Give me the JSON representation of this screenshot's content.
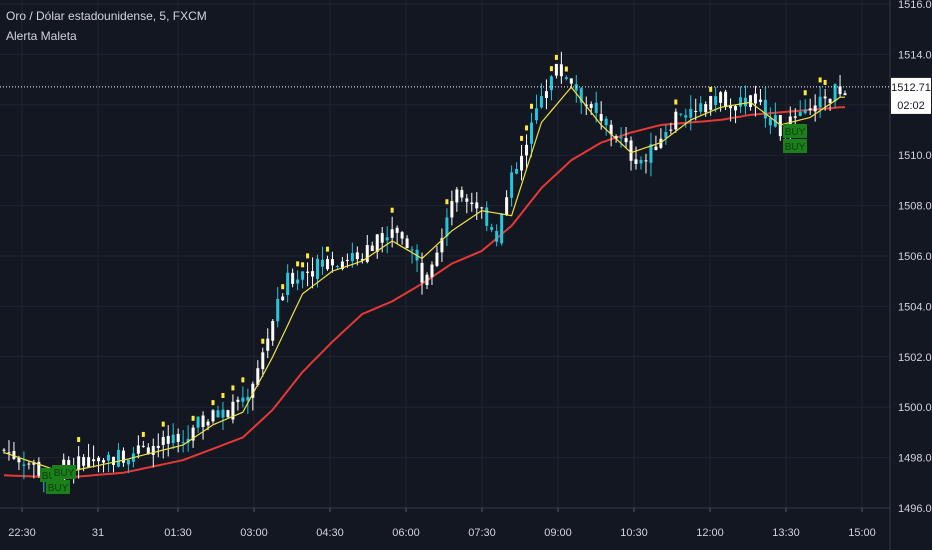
{
  "header": {
    "symbol_line": "Oro / Dólar estadounidense, 5, FXCM",
    "indicator_name": "Alerta Maleta"
  },
  "colors": {
    "background": "#131722",
    "grid": "#1f2430",
    "axis_text": "#d1d4dc",
    "candle": "#ffffff",
    "candle_alt": "#26c6da",
    "ema_fast": "#f0e442",
    "ema_slow": "#e53935",
    "signal_dot": "#ffeb3b",
    "buy_box": "#1b7f1b",
    "price_line": "#ffffff"
  },
  "price_axis": {
    "ticks": [
      "1496.00",
      "1498.00",
      "1500.00",
      "1502.00",
      "1504.00",
      "1506.00",
      "1508.00",
      "1510.00",
      "1512.00",
      "1514.00",
      "1516.00"
    ],
    "current_price": "1512.71",
    "countdown": "02:02"
  },
  "time_axis": {
    "ticks": [
      "22:30",
      "31",
      "01:30",
      "03:00",
      "04:30",
      "06:00",
      "07:30",
      "09:00",
      "10:30",
      "12:00",
      "13:30",
      "15:00"
    ]
  },
  "buy_signals": [
    {
      "label": "BUY",
      "time": "23:05"
    },
    {
      "label": "BUY",
      "time": "23:15"
    },
    {
      "label": "BUY",
      "time": "23:25"
    },
    {
      "label": "BUY",
      "time": "13:55"
    },
    {
      "label": "BUY",
      "time": "14:00"
    }
  ],
  "chart_data": {
    "type": "candlestick",
    "title": "Oro / Dólar estadounidense, 5, FXCM",
    "x_labels": [
      "22:30",
      "31",
      "01:30",
      "03:00",
      "04:30",
      "06:00",
      "07:30",
      "09:00",
      "10:30",
      "12:00",
      "13:30",
      "15:00"
    ],
    "ylim": [
      1496.0,
      1516.0
    ],
    "y_ticks": [
      1496,
      1498,
      1500,
      1502,
      1504,
      1506,
      1508,
      1510,
      1512,
      1514,
      1516
    ],
    "current_price": 1512.71,
    "series": [
      {
        "name": "Close (approx.)",
        "points": [
          [
            0,
            1498.3
          ],
          [
            6,
            1497.7
          ],
          [
            9,
            1497.0
          ],
          [
            12,
            1497.6
          ],
          [
            18,
            1497.9
          ],
          [
            24,
            1498.1
          ],
          [
            30,
            1498.5
          ],
          [
            36,
            1498.6
          ],
          [
            39,
            1499.3
          ],
          [
            42,
            1499.6
          ],
          [
            45,
            1499.8
          ],
          [
            48,
            1500.3
          ],
          [
            51,
            1501.4
          ],
          [
            54,
            1503.5
          ],
          [
            57,
            1505.0
          ],
          [
            60,
            1505.4
          ],
          [
            66,
            1505.8
          ],
          [
            72,
            1506.1
          ],
          [
            75,
            1506.7
          ],
          [
            78,
            1507.2
          ],
          [
            81,
            1506.6
          ],
          [
            84,
            1505.2
          ],
          [
            87,
            1506.4
          ],
          [
            90,
            1508.3
          ],
          [
            93,
            1508.5
          ],
          [
            96,
            1507.8
          ],
          [
            99,
            1506.8
          ],
          [
            102,
            1509.0
          ],
          [
            105,
            1510.3
          ],
          [
            108,
            1512.5
          ],
          [
            111,
            1513.4
          ],
          [
            114,
            1513.0
          ],
          [
            117,
            1512.0
          ],
          [
            120,
            1511.2
          ],
          [
            123,
            1510.8
          ],
          [
            126,
            1510.0
          ],
          [
            129,
            1509.8
          ],
          [
            132,
            1510.8
          ],
          [
            135,
            1511.6
          ],
          [
            138,
            1511.5
          ],
          [
            141,
            1511.9
          ],
          [
            144,
            1512.4
          ],
          [
            147,
            1512.0
          ],
          [
            150,
            1512.2
          ],
          [
            153,
            1511.8
          ],
          [
            156,
            1511.0
          ],
          [
            159,
            1511.3
          ],
          [
            162,
            1511.6
          ],
          [
            165,
            1512.2
          ],
          [
            168,
            1512.7
          ]
        ]
      },
      {
        "name": "EMA rápida",
        "color": "#f0e442",
        "points": [
          [
            0,
            1498.2
          ],
          [
            12,
            1497.4
          ],
          [
            24,
            1497.9
          ],
          [
            36,
            1498.5
          ],
          [
            42,
            1499.3
          ],
          [
            48,
            1499.8
          ],
          [
            54,
            1502.0
          ],
          [
            60,
            1504.5
          ],
          [
            66,
            1505.4
          ],
          [
            72,
            1505.8
          ],
          [
            78,
            1506.6
          ],
          [
            84,
            1505.9
          ],
          [
            90,
            1507.0
          ],
          [
            96,
            1507.8
          ],
          [
            102,
            1507.6
          ],
          [
            108,
            1511.3
          ],
          [
            114,
            1512.7
          ],
          [
            120,
            1511.2
          ],
          [
            126,
            1510.1
          ],
          [
            132,
            1510.5
          ],
          [
            138,
            1511.4
          ],
          [
            144,
            1511.9
          ],
          [
            150,
            1512.1
          ],
          [
            156,
            1511.2
          ],
          [
            162,
            1511.5
          ],
          [
            168,
            1512.3
          ]
        ]
      },
      {
        "name": "EMA lenta",
        "color": "#e53935",
        "points": [
          [
            0,
            1497.3
          ],
          [
            12,
            1497.2
          ],
          [
            24,
            1497.4
          ],
          [
            36,
            1497.9
          ],
          [
            48,
            1498.8
          ],
          [
            54,
            1499.9
          ],
          [
            60,
            1501.4
          ],
          [
            66,
            1502.6
          ],
          [
            72,
            1503.7
          ],
          [
            78,
            1504.2
          ],
          [
            84,
            1504.9
          ],
          [
            90,
            1505.7
          ],
          [
            96,
            1506.2
          ],
          [
            102,
            1507.2
          ],
          [
            108,
            1508.7
          ],
          [
            114,
            1509.8
          ],
          [
            120,
            1510.5
          ],
          [
            126,
            1510.9
          ],
          [
            132,
            1511.2
          ],
          [
            138,
            1511.3
          ],
          [
            144,
            1511.4
          ],
          [
            150,
            1511.6
          ],
          [
            156,
            1511.7
          ],
          [
            162,
            1511.8
          ],
          [
            168,
            1511.9
          ]
        ]
      }
    ]
  }
}
